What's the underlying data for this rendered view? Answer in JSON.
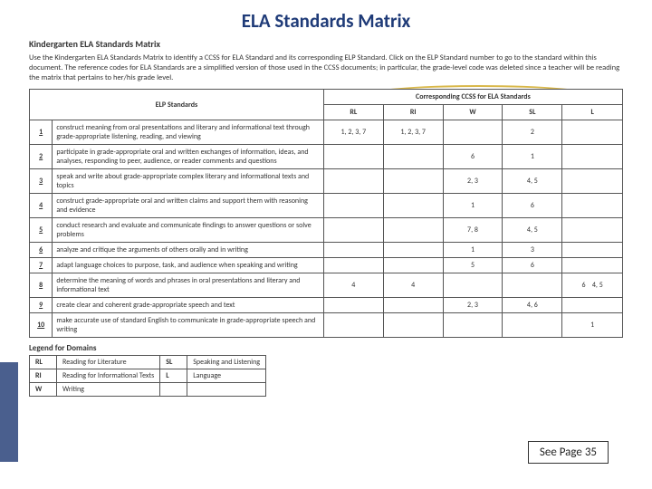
{
  "title": "ELA Standards Matrix",
  "subheader": "Kindergarten ELA Standards Matrix",
  "intro": "Use the Kindergarten ELA Standards Matrix to identify a CCSS for ELA Standard and its corresponding ELP Standard. Click on the ELP Standard number to go to the standard within this document. The reference codes for ELA Standards are a simplified version of those used in the CCSS documents; in particular, the grade-level code was deleted since a teacher will be reading the matrix that pertains to her/his grade level.",
  "headers": {
    "elp": "ELP Standards",
    "corr": "Corresponding CCSS for ELA Standards",
    "rl": "RL",
    "ri": "RI",
    "w": "W",
    "sl": "SL",
    "l": "L"
  },
  "rows": [
    {
      "n": "1",
      "d": "construct meaning from oral presentations and literary and informational text through grade-appropriate listening, reading, and viewing",
      "rl": "1, 2, 3, 7",
      "ri": "1, 2, 3, 7",
      "w": "",
      "sl": "2",
      "l": ""
    },
    {
      "n": "2",
      "d": "participate in grade-appropriate oral and written exchanges of information, ideas, and analyses, responding to peer, audience, or reader comments and questions",
      "rl": "",
      "ri": "",
      "w": "6",
      "sl": "1",
      "l": ""
    },
    {
      "n": "3",
      "d": "speak and write about grade-appropriate complex literary and informational texts and topics",
      "rl": "",
      "ri": "",
      "w": "2, 3",
      "sl": "4, 5",
      "l": ""
    },
    {
      "n": "4",
      "d": "construct grade-appropriate oral and written claims and support them with reasoning and evidence",
      "rl": "",
      "ri": "",
      "w": "1",
      "sl": "6",
      "l": ""
    },
    {
      "n": "5",
      "d": "conduct research and evaluate and communicate findings to answer questions or solve problems",
      "rl": "",
      "ri": "",
      "w": "7, 8",
      "sl": "4, 5",
      "l": ""
    },
    {
      "n": "6",
      "d": "analyze and critique the arguments of others orally and in writing",
      "rl": "",
      "ri": "",
      "w": "1",
      "sl": "3",
      "l": ""
    },
    {
      "n": "7",
      "d": "adapt language choices to purpose, task, and audience when speaking and writing",
      "rl": "",
      "ri": "",
      "w": "5",
      "sl": "6",
      "l": ""
    },
    {
      "n": "8",
      "d": "determine the meaning of words and phrases in oral presentations and literary and informational text",
      "rl": "4",
      "ri": "4",
      "w": "",
      "sl": "",
      "l": "6    4, 5"
    },
    {
      "n": "9",
      "d": "create clear and coherent grade-appropriate speech and text",
      "rl": "",
      "ri": "",
      "w": "2, 3",
      "sl": "4, 6",
      "l": ""
    },
    {
      "n": "10",
      "d": "make accurate use of standard English to communicate in grade-appropriate speech and writing",
      "rl": "",
      "ri": "",
      "w": "",
      "sl": "",
      "l": "1"
    }
  ],
  "legend": {
    "title": "Legend for Domains",
    "items": [
      {
        "c": "RL",
        "t": "Reading for Literature"
      },
      {
        "c": "RI",
        "t": "Reading for Informational Texts"
      },
      {
        "c": "W",
        "t": "Writing"
      },
      {
        "c": "SL",
        "t": "Speaking and Listening"
      },
      {
        "c": "L",
        "t": "Language"
      }
    ]
  },
  "seePage": "See Page 35",
  "colors": {
    "accent_blue": "#4a5f8e",
    "accent_orange": "#e8a33d",
    "highlight": "#d9b84a",
    "title": "#1f3b78"
  }
}
